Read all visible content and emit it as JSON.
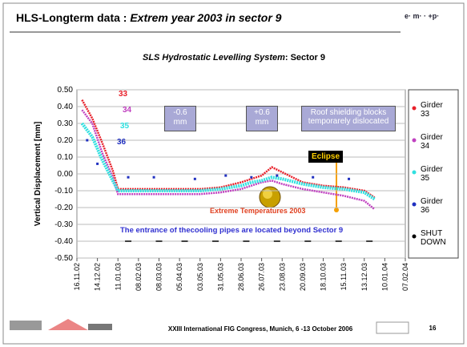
{
  "header": {
    "title": "HLS-Longterm data : ",
    "title_italic": "Extrem year 2003 in sector 9"
  },
  "chart_data": {
    "type": "line",
    "title": "SLS Hydrostatic Levelling System",
    "subtitle": ": Sector 9",
    "ylabel": "Vertical Displacement [mm]",
    "ylim": [
      -0.5,
      0.5
    ],
    "yticks": [
      {
        "value": 0.5,
        "label": "0.50"
      },
      {
        "value": 0.4,
        "label": "0.40"
      },
      {
        "value": 0.3,
        "label": "0.30"
      },
      {
        "value": 0.2,
        "label": "0.20"
      },
      {
        "value": 0.1,
        "label": "0.10"
      },
      {
        "value": 0,
        "label": "0.00"
      },
      {
        "value": -0.1,
        "label": "-0.10"
      },
      {
        "value": -0.2,
        "label": "-0.20"
      },
      {
        "value": -0.3,
        "label": "-0.30"
      },
      {
        "value": -0.4,
        "label": "-0.40"
      },
      {
        "value": -0.5,
        "label": "-0.50"
      }
    ],
    "xlim": [
      "16.11.02",
      "07.02.04"
    ],
    "xticks": [
      "16.11.02",
      "14.12.02",
      "11.01.03",
      "08.02.03",
      "08.03.03",
      "05.04.03",
      "03.05.03",
      "31.05.03",
      "28.06.03",
      "26.07.03",
      "23.08.03",
      "20.09.03",
      "18.10.03",
      "15.11.03",
      "13.12.03",
      "10.01.04",
      "07.02.04"
    ],
    "grid": true,
    "series": [
      {
        "name": "Girder 33",
        "color": "#e8202a",
        "x": [
          "23.11.02",
          "07.12.02",
          "21.12.02",
          "04.01.03",
          "11.01.03",
          "08.02.03",
          "08.03.03",
          "05.04.03",
          "03.05.03",
          "31.05.03",
          "28.06.03",
          "12.07.03",
          "26.07.03",
          "09.08.03",
          "23.08.03",
          "20.09.03",
          "18.10.03",
          "15.11.03",
          "13.12.03",
          "27.12.03"
        ],
        "values": [
          0.44,
          0.33,
          0.18,
          0.02,
          -0.09,
          -0.09,
          -0.09,
          -0.09,
          -0.09,
          -0.08,
          -0.05,
          -0.03,
          -0.01,
          0.04,
          0.01,
          -0.05,
          -0.07,
          -0.08,
          -0.1,
          -0.14
        ]
      },
      {
        "name": "Girder 34",
        "color": "#c040c0",
        "x": [
          "23.11.02",
          "07.12.02",
          "21.12.02",
          "04.01.03",
          "11.01.03",
          "08.02.03",
          "08.03.03",
          "05.04.03",
          "03.05.03",
          "31.05.03",
          "28.06.03",
          "12.07.03",
          "26.07.03",
          "09.08.03",
          "23.08.03",
          "20.09.03",
          "18.10.03",
          "15.11.03",
          "13.12.03",
          "27.12.03"
        ],
        "values": [
          0.38,
          0.3,
          0.12,
          -0.02,
          -0.12,
          -0.12,
          -0.12,
          -0.12,
          -0.12,
          -0.11,
          -0.09,
          -0.07,
          -0.05,
          -0.04,
          -0.06,
          -0.09,
          -0.11,
          -0.13,
          -0.16,
          -0.21
        ]
      },
      {
        "name": "Girder 35",
        "color": "#30e0e0",
        "x": [
          "23.11.02",
          "07.12.02",
          "21.12.02",
          "04.01.03",
          "11.01.03",
          "08.02.03",
          "08.03.03",
          "05.04.03",
          "03.05.03",
          "31.05.03",
          "28.06.03",
          "12.07.03",
          "26.07.03",
          "09.08.03",
          "23.08.03",
          "20.09.03",
          "18.10.03",
          "15.11.03",
          "13.12.03",
          "27.12.03"
        ],
        "values": [
          0.3,
          0.22,
          0.08,
          -0.04,
          -0.1,
          -0.1,
          -0.1,
          -0.1,
          -0.1,
          -0.09,
          -0.07,
          -0.05,
          -0.04,
          -0.02,
          -0.03,
          -0.06,
          -0.08,
          -0.09,
          -0.11,
          -0.15
        ]
      },
      {
        "name": "Girder 36",
        "color": "#2030c0",
        "x": [
          "30.11.02",
          "14.12.02",
          "25.01.03",
          "01.03.03",
          "26.04.03",
          "07.06.03",
          "12.07.03",
          "16.08.03",
          "04.10.03",
          "22.11.03"
        ],
        "values": [
          0.2,
          0.06,
          -0.02,
          -0.02,
          -0.03,
          -0.01,
          -0.02,
          -0.01,
          -0.02,
          -0.03
        ]
      },
      {
        "name": "SHUT DOWN",
        "color": "#000000",
        "x": [
          "25.01.03",
          "08.03.03",
          "12.04.03",
          "24.05.03",
          "05.07.03",
          "16.08.03",
          "27.09.03",
          "08.11.03",
          "20.12.03"
        ],
        "values": [
          -0.4,
          -0.4,
          -0.4,
          -0.4,
          -0.4,
          -0.4,
          -0.4,
          -0.4,
          -0.4
        ]
      }
    ],
    "series_labels": [
      "33",
      "34",
      "35",
      "36"
    ],
    "annotations": [
      "-0.6 mm",
      "+0.6 mm",
      "Roof shielding blocks temporarely dislocated",
      "Eclipse",
      "Extreme Temperatures 2003",
      "The entrance of thecooling pipes are located beyond Sector 9"
    ]
  },
  "footer": {
    "text": "XXIII International FIG Congress, Munich, 6 -13 October 2006",
    "page": "16"
  }
}
